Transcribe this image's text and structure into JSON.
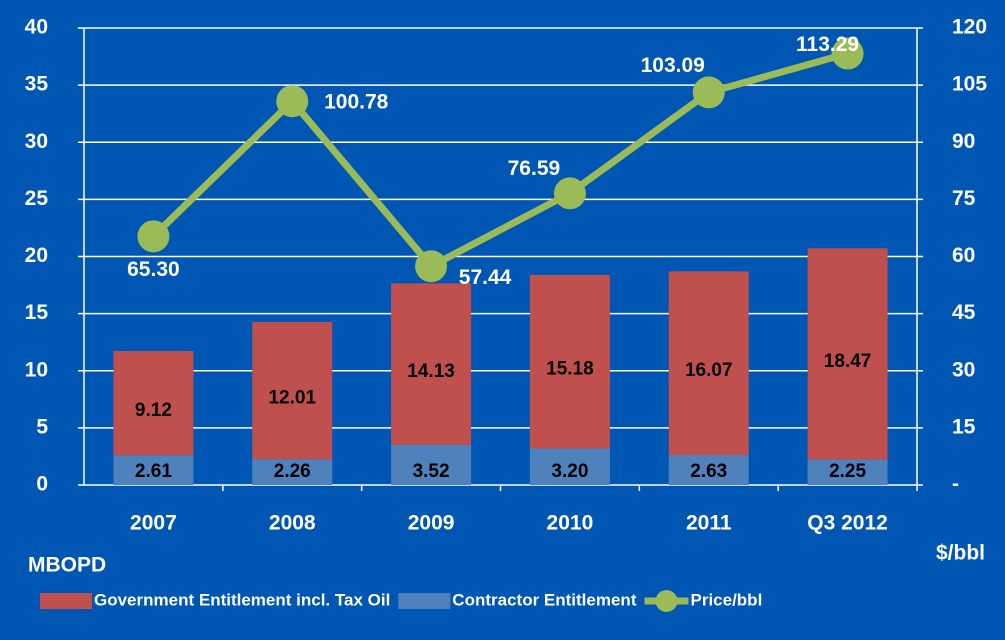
{
  "chart_data": {
    "type": "bar",
    "categories": [
      "2007",
      "2008",
      "2009",
      "2010",
      "2011",
      "Q3 2012"
    ],
    "series": [
      {
        "name": "Contractor Entitlement",
        "color": "#4f81bd",
        "values": [
          2.61,
          2.26,
          3.52,
          3.2,
          2.63,
          2.25
        ],
        "value_labels": [
          "2.61",
          "2.26",
          "3.52",
          "3.20",
          "2.63",
          "2.25"
        ]
      },
      {
        "name": "Government Entitlement incl. Tax Oil",
        "color": "#c0504d",
        "values": [
          9.12,
          12.01,
          14.13,
          15.18,
          16.07,
          18.47
        ],
        "value_labels": [
          "9.12",
          "12.01",
          "14.13",
          "15.18",
          "16.07",
          "18.47"
        ]
      },
      {
        "name": "Price/bbl",
        "type": "line",
        "axis": "y2",
        "color": "#9bbb59",
        "values": [
          65.3,
          100.78,
          57.44,
          76.59,
          103.09,
          113.29
        ],
        "value_labels": [
          "65.30",
          "100.78",
          "57.44",
          "76.59",
          "103.09",
          "113.29"
        ]
      }
    ],
    "y_label": "MBOPD",
    "y2_label": "$/bbl",
    "ylim": [
      0,
      40
    ],
    "yticks": [
      0,
      5,
      10,
      15,
      20,
      25,
      30,
      35,
      40
    ],
    "y2lim": [
      0,
      120
    ],
    "y2ticks": [
      {
        "value": 0,
        "label": "-"
      },
      15,
      30,
      45,
      60,
      75,
      90,
      105,
      120
    ],
    "grid": true,
    "legend": "bottom"
  }
}
